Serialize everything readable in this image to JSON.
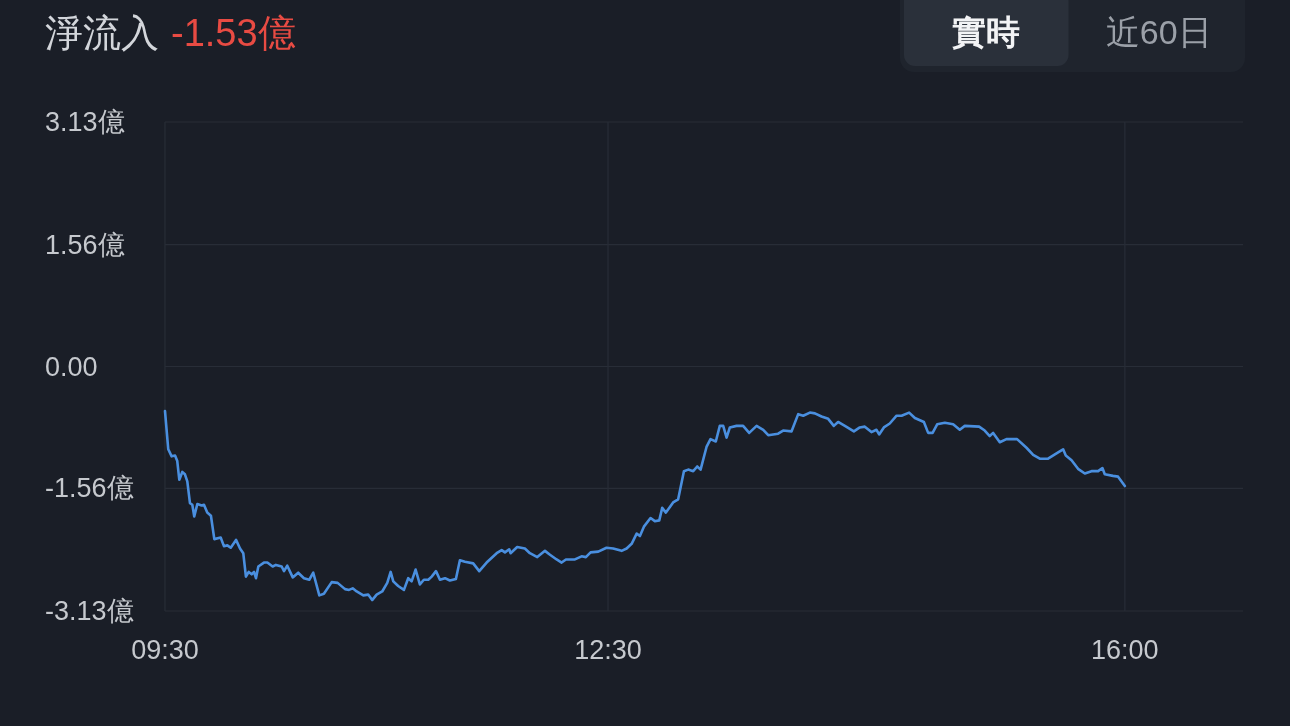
{
  "chart_data": {
    "type": "line",
    "title": "淨流入",
    "subtitle": "-1.53億",
    "annotations": [
      "實時",
      "近60日"
    ],
    "color": "#4a8fdf",
    "x": [
      9.5,
      9.522,
      9.545,
      9.568,
      9.583,
      9.597,
      9.617,
      9.635,
      9.651,
      9.669,
      9.685,
      9.698,
      9.719,
      9.748,
      9.764,
      9.786,
      9.811,
      9.834,
      9.877,
      9.899,
      9.922,
      9.945,
      9.981,
      10.008,
      10.03,
      10.048,
      10.067,
      10.087,
      10.103,
      10.116,
      10.132,
      10.17,
      10.193,
      10.229,
      10.251,
      10.29,
      10.306,
      10.328,
      10.365,
      10.402,
      10.441,
      10.477,
      10.504,
      10.545,
      10.576,
      10.629,
      10.669,
      10.719,
      10.746,
      10.771,
      10.798,
      10.843,
      10.876,
      10.903,
      10.933,
      10.971,
      11.005,
      11.028,
      11.046,
      11.079,
      11.118,
      11.147,
      11.17,
      11.197,
      11.226,
      11.253,
      11.283,
      11.306,
      11.335,
      11.362,
      11.396,
      11.429,
      11.47,
      11.497,
      11.531,
      11.587,
      11.628,
      11.678,
      11.746,
      11.78,
      11.802,
      11.831,
      11.84,
      11.885,
      11.937,
      11.971,
      12.021,
      12.073,
      12.107,
      12.152,
      12.186,
      12.215,
      12.276,
      12.321,
      12.35,
      12.382,
      12.434,
      12.49,
      12.535,
      12.592,
      12.626,
      12.66,
      12.694,
      12.716,
      12.743,
      12.788,
      12.817,
      12.847,
      12.867,
      12.892,
      12.941,
      12.975,
      13.014,
      13.043,
      13.077,
      13.104,
      13.127,
      13.167,
      13.194,
      13.23,
      13.257,
      13.28,
      13.303,
      13.325,
      13.37,
      13.415,
      13.456,
      13.506,
      13.551,
      13.585,
      13.652,
      13.686,
      13.743,
      13.788,
      13.822,
      13.867,
      13.901,
      13.946,
      13.991,
      14.029,
      14.058,
      14.104,
      14.165,
      14.205,
      14.239,
      14.284,
      14.318,
      14.336,
      14.368,
      14.408,
      14.454,
      14.488,
      14.539,
      14.578,
      14.639,
      14.668,
      14.698,
      14.729,
      14.781,
      14.837,
      14.882,
      14.916,
      15.013,
      15.051,
      15.085,
      15.108,
      15.153,
      15.198,
      15.27,
      15.334,
      15.379,
      15.424,
      15.48,
      15.548,
      15.582,
      15.6,
      15.639,
      15.683,
      15.729,
      15.774,
      15.819,
      15.848,
      15.864,
      15.92,
      15.954,
      16.0
    ],
    "values": [
      -0.57,
      -1.06,
      -1.15,
      -1.14,
      -1.21,
      -1.45,
      -1.35,
      -1.38,
      -1.47,
      -1.75,
      -1.77,
      -1.92,
      -1.76,
      -1.78,
      -1.77,
      -1.87,
      -1.91,
      -2.21,
      -2.19,
      -2.3,
      -2.29,
      -2.32,
      -2.22,
      -2.33,
      -2.39,
      -2.69,
      -2.63,
      -2.66,
      -2.63,
      -2.71,
      -2.56,
      -2.51,
      -2.51,
      -2.56,
      -2.54,
      -2.56,
      -2.62,
      -2.55,
      -2.7,
      -2.64,
      -2.71,
      -2.73,
      -2.64,
      -2.93,
      -2.91,
      -2.76,
      -2.77,
      -2.85,
      -2.86,
      -2.84,
      -2.88,
      -2.93,
      -2.92,
      -2.99,
      -2.92,
      -2.88,
      -2.77,
      -2.63,
      -2.75,
      -2.81,
      -2.86,
      -2.71,
      -2.75,
      -2.6,
      -2.79,
      -2.73,
      -2.73,
      -2.69,
      -2.62,
      -2.73,
      -2.71,
      -2.74,
      -2.72,
      -2.48,
      -2.5,
      -2.52,
      -2.62,
      -2.51,
      -2.39,
      -2.35,
      -2.38,
      -2.34,
      -2.39,
      -2.31,
      -2.33,
      -2.39,
      -2.44,
      -2.36,
      -2.41,
      -2.47,
      -2.51,
      -2.47,
      -2.47,
      -2.43,
      -2.44,
      -2.38,
      -2.37,
      -2.32,
      -2.33,
      -2.36,
      -2.33,
      -2.27,
      -2.14,
      -2.17,
      -2.05,
      -1.94,
      -1.98,
      -1.97,
      -1.81,
      -1.87,
      -1.74,
      -1.7,
      -1.34,
      -1.32,
      -1.34,
      -1.28,
      -1.32,
      -1.03,
      -0.93,
      -0.96,
      -0.76,
      -0.76,
      -0.91,
      -0.78,
      -0.76,
      -0.76,
      -0.85,
      -0.76,
      -0.81,
      -0.88,
      -0.86,
      -0.82,
      -0.83,
      -0.61,
      -0.63,
      -0.59,
      -0.6,
      -0.64,
      -0.67,
      -0.76,
      -0.71,
      -0.76,
      -0.83,
      -0.78,
      -0.77,
      -0.84,
      -0.81,
      -0.87,
      -0.78,
      -0.73,
      -0.63,
      -0.63,
      -0.59,
      -0.66,
      -0.71,
      -0.85,
      -0.85,
      -0.74,
      -0.72,
      -0.74,
      -0.81,
      -0.76,
      -0.77,
      -0.82,
      -0.89,
      -0.85,
      -0.97,
      -0.93,
      -0.93,
      -1.04,
      -1.13,
      -1.18,
      -1.18,
      -1.1,
      -1.06,
      -1.14,
      -1.2,
      -1.31,
      -1.37,
      -1.34,
      -1.34,
      -1.3,
      -1.38,
      -1.4,
      -1.41,
      -1.53
    ],
    "xlim": [
      9.5,
      16.8
    ],
    "xticks": [
      {
        "value": 9.5,
        "label": "09:30"
      },
      {
        "value": 12.5,
        "label": "12:30"
      },
      {
        "value": 16,
        "label": "16:00"
      }
    ],
    "ylim": [
      -3.13,
      3.13
    ],
    "yticks": [
      {
        "value": 3.13,
        "label": "3.13億"
      },
      {
        "value": 1.56,
        "label": "1.56億"
      },
      {
        "value": 0,
        "label": "0.00"
      },
      {
        "value": -1.56,
        "label": "-1.56億"
      },
      {
        "value": -3.13,
        "label": "-3.13億"
      }
    ],
    "grid": true
  }
}
